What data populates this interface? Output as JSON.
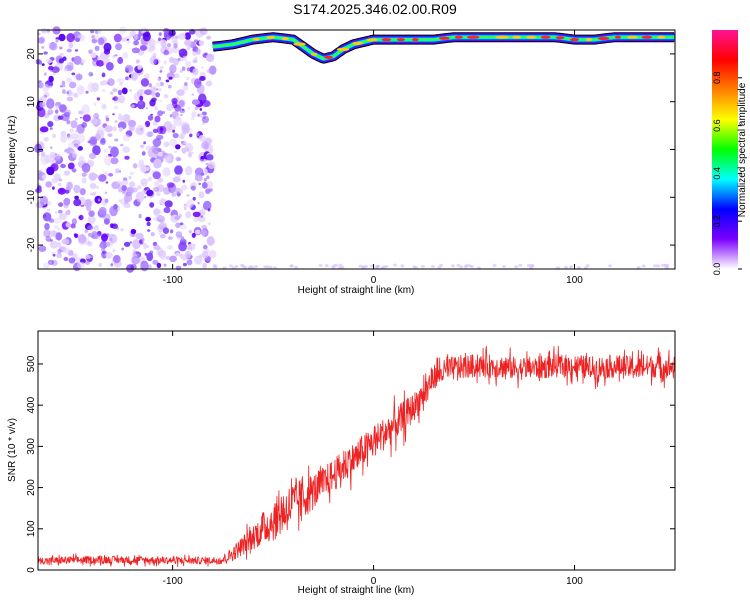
{
  "title": "S174.2025.346.02.00.R09",
  "chart_data": [
    {
      "type": "heatmap",
      "xlabel": "Height of straight line (km)",
      "ylabel": "Frequency (Hz)",
      "xlim": [
        -167,
        150
      ],
      "ylim": [
        -25,
        25
      ],
      "xticks": [
        -100,
        0,
        100
      ],
      "xtick_labels": [
        "-100",
        "0",
        "100"
      ],
      "yticks": [
        -20,
        -10,
        0,
        10,
        20
      ],
      "ytick_labels": [
        "-20",
        "-10",
        "0",
        "10",
        "20"
      ],
      "grid": false,
      "colorbar": {
        "label": "Normalized spectral amplitude",
        "range": [
          0,
          1
        ],
        "ticks": [
          0.0,
          0.2,
          0.4,
          0.6,
          0.8
        ],
        "tick_labels": [
          "0.0",
          "0.2",
          "0.4",
          "0.6",
          "0.8"
        ],
        "colormap": [
          "#ffffff",
          "#7b00ff",
          "#0000ff",
          "#00ffff",
          "#00ff00",
          "#ffff00",
          "#ff7f00",
          "#ff0000",
          "#ff1493"
        ]
      },
      "noise_region_x": [
        -167,
        -80
      ],
      "carrier_trace": {
        "x": [
          -80,
          -70,
          -60,
          -50,
          -40,
          -35,
          -30,
          -25,
          -20,
          -15,
          -10,
          -5,
          0,
          10,
          20,
          30,
          40,
          50,
          60,
          70,
          80,
          90,
          100,
          110,
          120,
          130,
          140,
          150
        ],
        "y": [
          21.5,
          22,
          23,
          23.5,
          23,
          21.5,
          20,
          19,
          19.5,
          21,
          22,
          22.5,
          23,
          23,
          23,
          23,
          23.5,
          23.5,
          23.5,
          23.5,
          23.5,
          23.5,
          23,
          23,
          23.5,
          23.5,
          23.5,
          23.5
        ]
      }
    },
    {
      "type": "line",
      "xlabel": "Height of straight line (km)",
      "ylabel": "SNR (10 * v/v)",
      "xlim": [
        -167,
        150
      ],
      "ylim": [
        0,
        580
      ],
      "xticks": [
        -100,
        0,
        100
      ],
      "xtick_labels": [
        "-100",
        "0",
        "100"
      ],
      "yticks": [
        0,
        100,
        200,
        300,
        400,
        500
      ],
      "ytick_labels": [
        "0",
        "100",
        "200",
        "300",
        "400",
        "500"
      ],
      "grid": false,
      "series": [
        {
          "color": "#ee2222",
          "x": [
            -167,
            -150,
            -130,
            -110,
            -90,
            -80,
            -75,
            -70,
            -65,
            -60,
            -55,
            -50,
            -45,
            -40,
            -35,
            -30,
            -25,
            -20,
            -15,
            -10,
            -5,
            0,
            5,
            10,
            15,
            20,
            25,
            30,
            40,
            50,
            60,
            70,
            80,
            90,
            100,
            110,
            120,
            130,
            140,
            150
          ],
          "y": [
            22,
            24,
            25,
            24,
            23,
            23,
            25,
            40,
            60,
            80,
            100,
            120,
            140,
            160,
            175,
            190,
            210,
            230,
            250,
            270,
            290,
            310,
            330,
            350,
            370,
            395,
            430,
            470,
            490,
            495,
            495,
            490,
            490,
            495,
            495,
            490,
            495,
            490,
            495,
            490
          ],
          "noise": [
            8,
            9,
            9,
            9,
            9,
            9,
            12,
            18,
            24,
            30,
            40,
            50,
            55,
            55,
            50,
            45,
            40,
            40,
            40,
            40,
            40,
            40,
            40,
            40,
            40,
            35,
            35,
            30,
            30,
            28,
            28,
            28,
            28,
            28,
            28,
            28,
            28,
            28,
            28,
            28
          ]
        }
      ]
    }
  ]
}
